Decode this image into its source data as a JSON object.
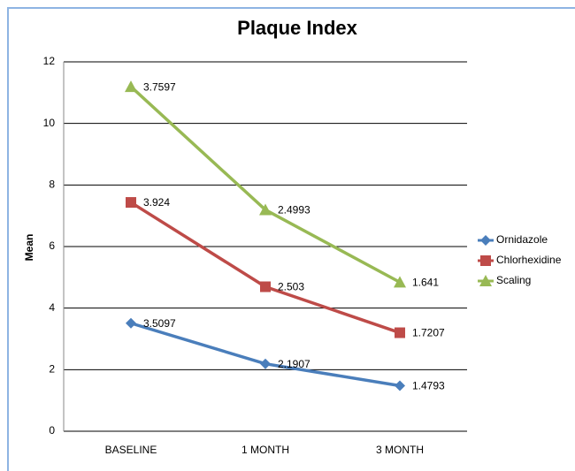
{
  "chart_data": {
    "type": "line",
    "stacked": true,
    "title": "Plaque Index",
    "y_label": "Mean",
    "categories": [
      "BASELINE",
      "1 MONTH",
      "3 MONTH"
    ],
    "series": [
      {
        "name": "Ornidazole",
        "color": "#4a7ebb",
        "marker": "diamond",
        "values": [
          3.5097,
          2.1907,
          1.4793
        ]
      },
      {
        "name": "Chlorhexidine",
        "color": "#be4b48",
        "marker": "square",
        "values": [
          3.924,
          2.503,
          1.7207
        ]
      },
      {
        "name": "Scaling",
        "color": "#98b954",
        "marker": "triangle",
        "values": [
          3.7597,
          2.4993,
          1.641
        ]
      }
    ],
    "ylim": [
      0,
      12
    ],
    "yticks": [
      0,
      2,
      4,
      6,
      8,
      10,
      12
    ],
    "grid": true,
    "legend": "right",
    "data_labels": true
  }
}
